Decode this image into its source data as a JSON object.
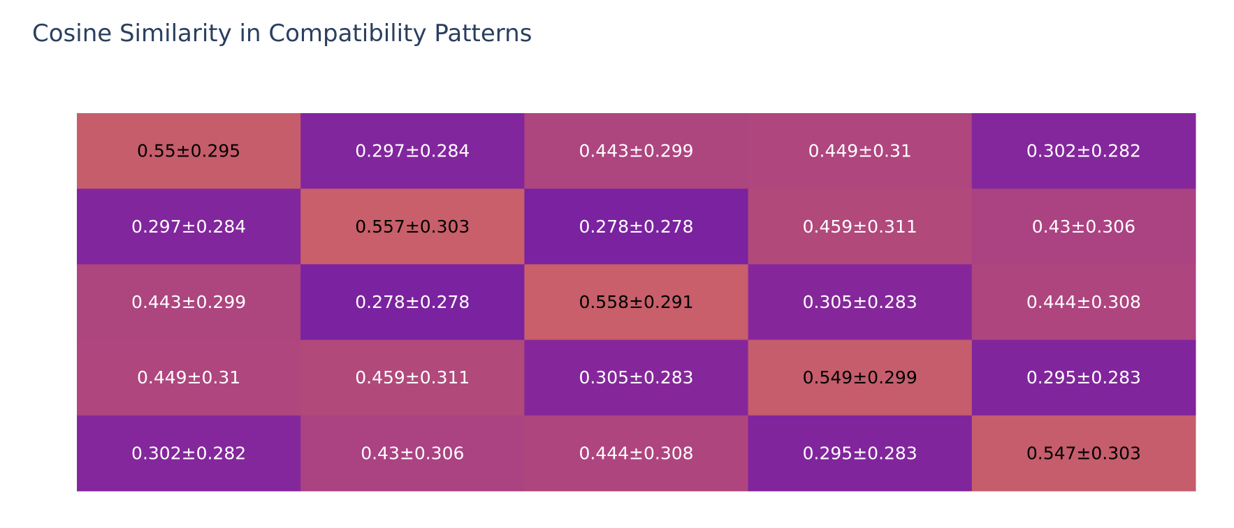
{
  "chart_data": {
    "type": "heatmap",
    "title": "Cosine Similarity in Compatibility Patterns",
    "rows": 5,
    "cols": 5,
    "values": [
      [
        0.55,
        0.297,
        0.443,
        0.449,
        0.302
      ],
      [
        0.297,
        0.557,
        0.278,
        0.459,
        0.43
      ],
      [
        0.443,
        0.278,
        0.558,
        0.305,
        0.444
      ],
      [
        0.449,
        0.459,
        0.305,
        0.549,
        0.295
      ],
      [
        0.302,
        0.43,
        0.444,
        0.295,
        0.547
      ]
    ],
    "labels": [
      [
        "0.55±0.295",
        "0.297±0.284",
        "0.443±0.299",
        "0.449±0.31",
        "0.302±0.282"
      ],
      [
        "0.297±0.284",
        "0.557±0.303",
        "0.278±0.278",
        "0.459±0.311",
        "0.43±0.306"
      ],
      [
        "0.443±0.299",
        "0.278±0.278",
        "0.558±0.291",
        "0.305±0.283",
        "0.444±0.308"
      ],
      [
        "0.449±0.31",
        "0.459±0.311",
        "0.305±0.283",
        "0.549±0.299",
        "0.295±0.283"
      ],
      [
        "0.302±0.282",
        "0.43±0.306",
        "0.444±0.308",
        "0.295±0.283",
        "0.547±0.303"
      ]
    ],
    "colorscale": [
      "#7b22a0",
      "#9e3590",
      "#b24a7a",
      "#c85f6a"
    ],
    "zmin": 0.278,
    "zmax": 0.558,
    "xlabel": "",
    "ylabel": "",
    "grid": false,
    "legend": "none"
  }
}
